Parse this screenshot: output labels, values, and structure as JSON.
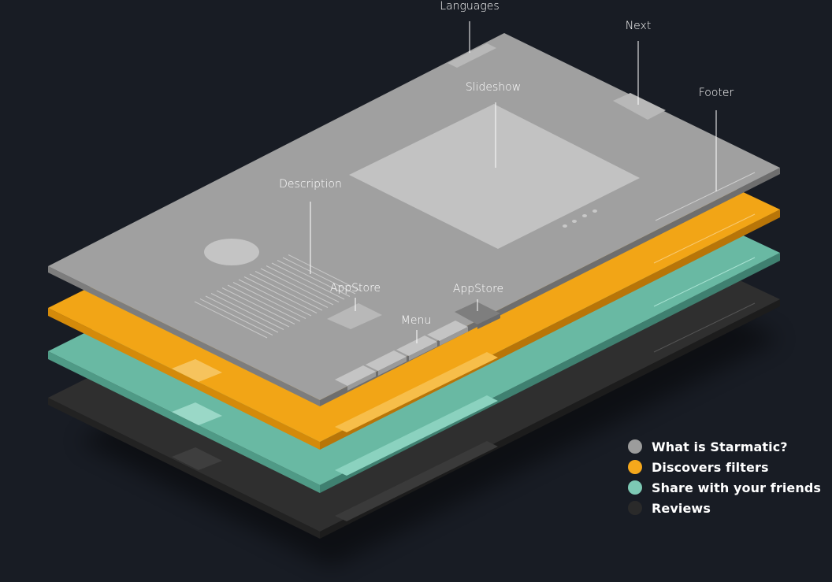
{
  "callouts": {
    "languages": "Languages",
    "next": "Next",
    "slideshow": "Slideshow",
    "footer": "Footer",
    "description": "Description",
    "appstore_left": "AppStore",
    "appstore_right": "AppStore",
    "menu": "Menu"
  },
  "legend": {
    "items": [
      {
        "label": "What is Starmatic?",
        "color": "#9c9c9c"
      },
      {
        "label": "Discovers filters",
        "color": "#f5a81c"
      },
      {
        "label": "Share with your friends",
        "color": "#7dc9b4"
      },
      {
        "label": "Reviews",
        "color": "#2a2a2a"
      }
    ]
  },
  "colors": {
    "background": "#181c24",
    "layer_gray": "#9c9c9c",
    "layer_orange": "#f5a81c",
    "layer_teal": "#7dc9b4",
    "layer_dark": "#2f2f2f"
  }
}
